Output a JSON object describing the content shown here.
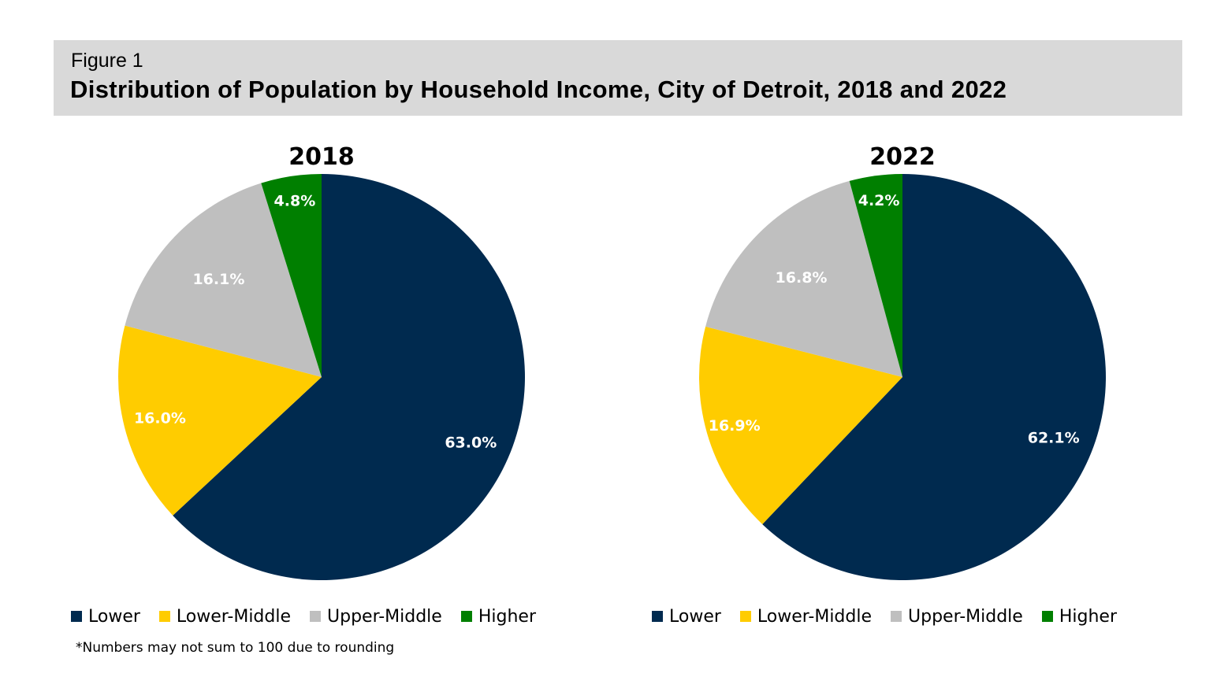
{
  "header": {
    "figure_label": "Figure 1",
    "title": "Distribution of Population by Household Income, City of Detroit, 2018 and 2022"
  },
  "footnote": "*Numbers may not sum to 100 due to rounding",
  "colors": {
    "Lower": "#002A4F",
    "Lower-Middle": "#FFCC00",
    "Upper-Middle": "#BFBFBF",
    "Higher": "#007F00"
  },
  "chart_data": [
    {
      "type": "pie",
      "title": "2018",
      "categories": [
        "Lower",
        "Lower-Middle",
        "Upper-Middle",
        "Higher"
      ],
      "values": [
        63.0,
        16.0,
        16.1,
        4.8
      ],
      "labels": [
        "63.0%",
        "16.0%",
        "16.1%",
        "4.8%"
      ],
      "unit": "%",
      "start_angle": "12 o'clock, clockwise",
      "legend": {
        "placement": "bottom",
        "entries": [
          "Lower",
          "Lower-Middle",
          "Upper-Middle",
          "Higher"
        ]
      }
    },
    {
      "type": "pie",
      "title": "2022",
      "categories": [
        "Lower",
        "Lower-Middle",
        "Upper-Middle",
        "Higher"
      ],
      "values": [
        62.1,
        16.9,
        16.8,
        4.2
      ],
      "labels": [
        "62.1%",
        "16.9%",
        "16.8%",
        "4.2%"
      ],
      "unit": "%",
      "start_angle": "12 o'clock, clockwise",
      "legend": {
        "placement": "bottom",
        "entries": [
          "Lower",
          "Lower-Middle",
          "Upper-Middle",
          "Higher"
        ]
      }
    }
  ]
}
